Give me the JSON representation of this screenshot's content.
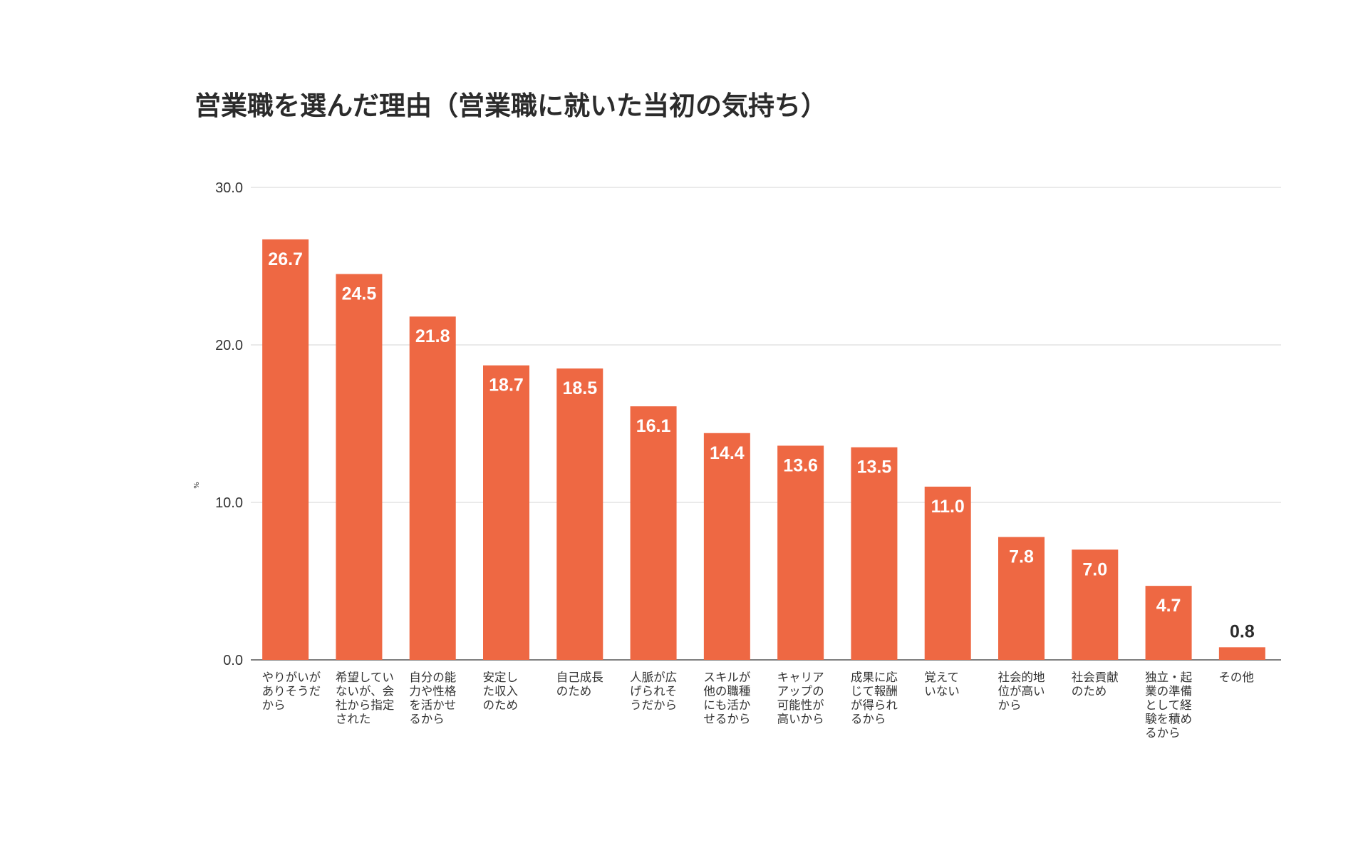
{
  "chart_data": {
    "type": "bar",
    "title": "営業職を選んだ理由（営業職に就いた当初の気持ち）",
    "ylabel": "%",
    "xlabel": "",
    "ylim": [
      0,
      30
    ],
    "yticks": [
      "0.0",
      "10.0",
      "20.0",
      "30.0"
    ],
    "grid": true,
    "bar_color": "#ee6843",
    "categories": [
      [
        "やりがいが",
        "ありそうだ",
        "から"
      ],
      [
        "希望してい",
        "ないが、会",
        "社から指定",
        "された"
      ],
      [
        "自分の能",
        "力や性格",
        "を活かせ",
        "るから"
      ],
      [
        "安定し",
        "た収入",
        "のため"
      ],
      [
        "自己成長",
        "のため"
      ],
      [
        "人脈が広",
        "げられそ",
        "うだから"
      ],
      [
        "スキルが",
        "他の職種",
        "にも活か",
        "せるから"
      ],
      [
        "キャリア",
        "アップの",
        "可能性が",
        "高いから"
      ],
      [
        "成果に応",
        "じて報酬",
        "が得られ",
        "るから"
      ],
      [
        "覚えて",
        "いない"
      ],
      [
        "社会的地",
        "位が高い",
        "から"
      ],
      [
        "社会貢献",
        "のため"
      ],
      [
        "独立・起",
        "業の準備",
        "として経",
        "験を積め",
        "るから"
      ],
      [
        "その他"
      ]
    ],
    "values": [
      26.7,
      24.5,
      21.8,
      18.7,
      18.5,
      16.1,
      14.4,
      13.6,
      13.5,
      11.0,
      7.8,
      7.0,
      4.7,
      0.8
    ],
    "value_labels": [
      "26.7",
      "24.5",
      "21.8",
      "18.7",
      "18.5",
      "16.1",
      "14.4",
      "13.6",
      "13.5",
      "11.0",
      "7.8",
      "7.0",
      "4.7",
      "0.8"
    ]
  }
}
